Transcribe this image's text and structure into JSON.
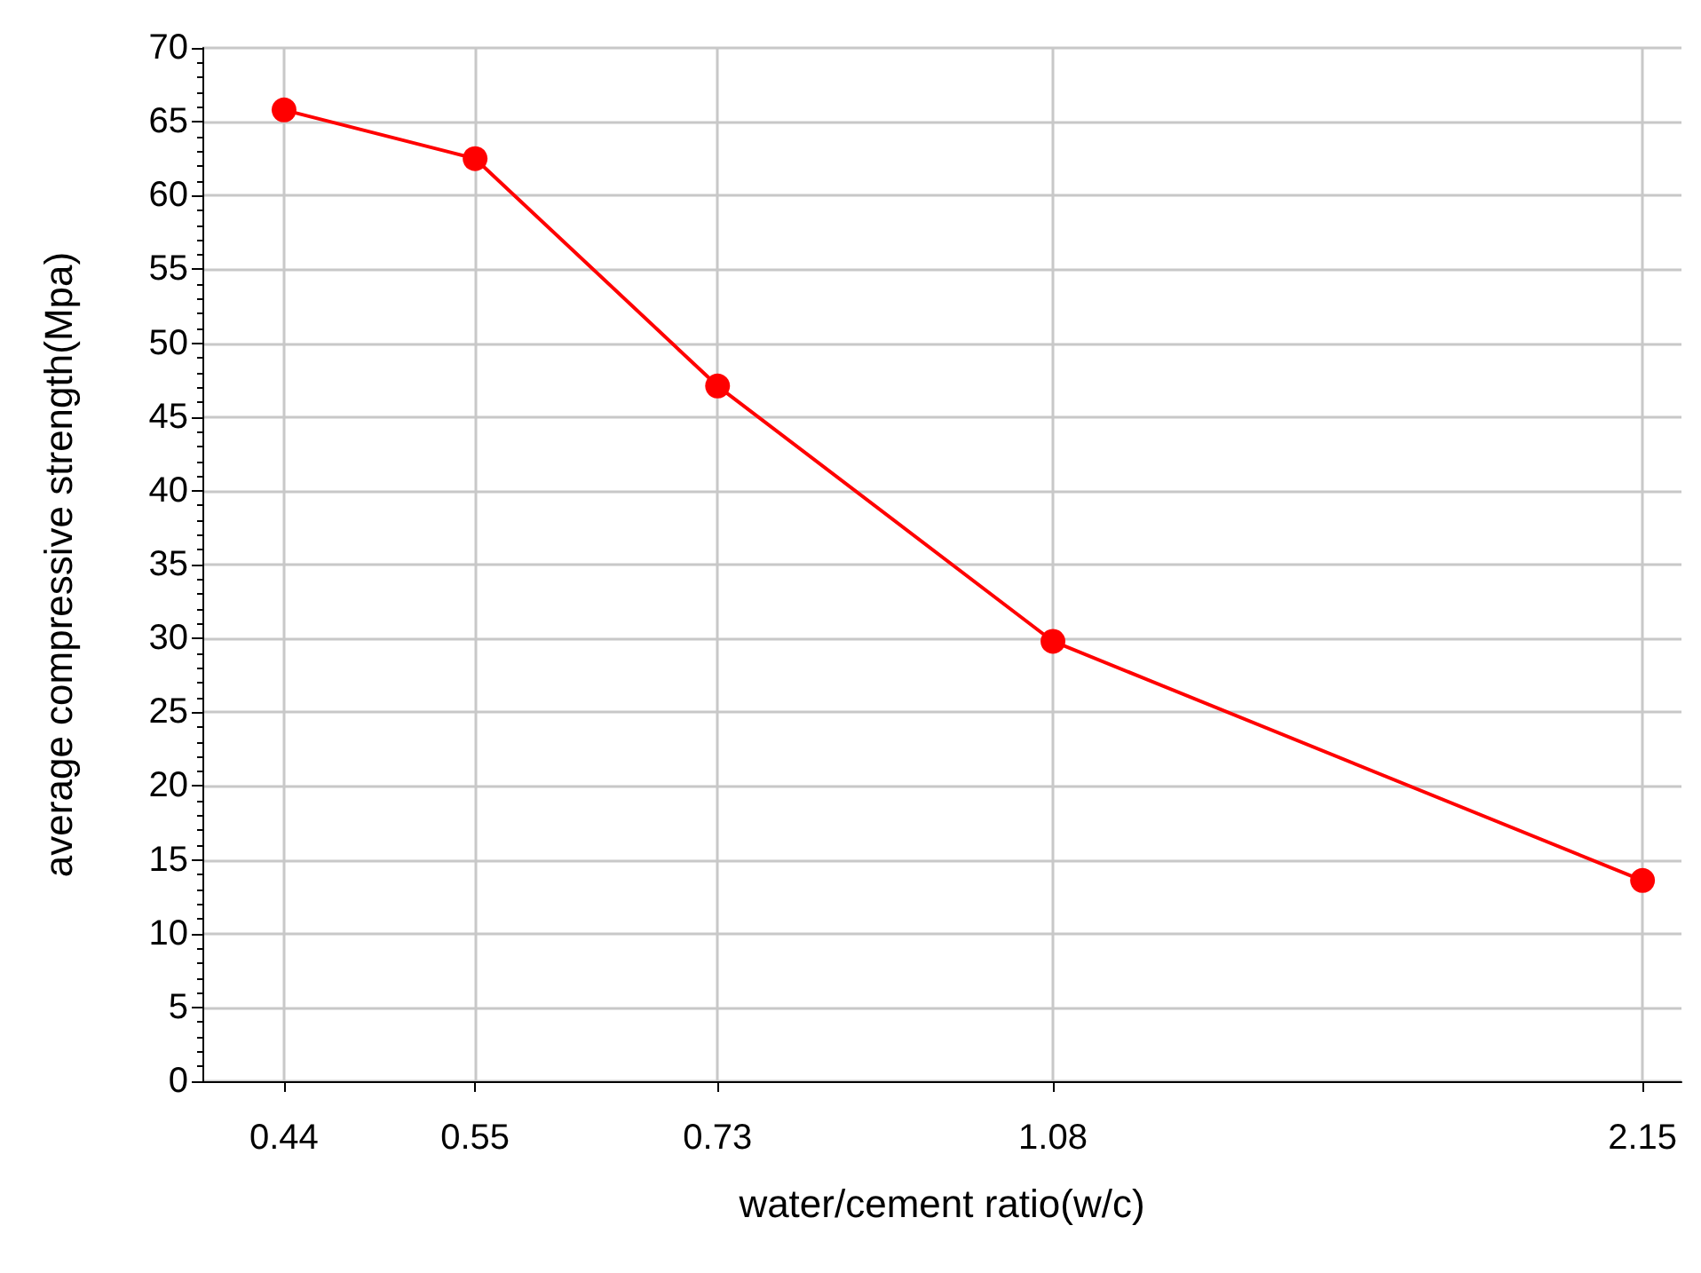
{
  "chart_data": {
    "type": "line",
    "xlabel": "water/cement ratio(w/c)",
    "ylabel": "average compressive strength(Mpa)",
    "x": [
      0.44,
      0.55,
      0.73,
      1.08,
      2.15
    ],
    "series": [
      {
        "color": "#ff0000",
        "values": [
          65.8,
          62.5,
          47.1,
          29.8,
          13.6
        ]
      }
    ],
    "log": "x",
    "xlim": [
      0.4,
      2.25
    ],
    "xticks": [
      0.44,
      0.55,
      0.73,
      1.08,
      2.15
    ],
    "ylim": [
      0,
      70
    ],
    "yticks": [
      0,
      5,
      10,
      15,
      20,
      25,
      30,
      35,
      40,
      45,
      50,
      55,
      60,
      65,
      70
    ],
    "grid": true,
    "marker": "circle",
    "line_style": "solid"
  }
}
